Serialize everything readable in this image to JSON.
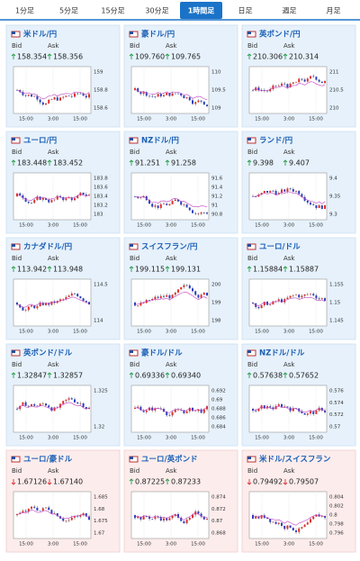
{
  "tabs": [
    "1分足",
    "5分足",
    "15分足",
    "30分足",
    "1時間足",
    "日足",
    "週足",
    "月足"
  ],
  "active_tab": 4,
  "bid_label": "Bid",
  "ask_label": "Ask",
  "x_labels": [
    "15:00",
    "3:00",
    "15:00"
  ],
  "cards": [
    {
      "name": "米ドル/円",
      "bid": "158.354",
      "ask": "158.356",
      "dir": "up",
      "yticks": [
        "159",
        "158.8",
        "158.6"
      ]
    },
    {
      "name": "豪ドル/円",
      "bid": "109.760",
      "ask": "109.765",
      "dir": "up",
      "yticks": [
        "110",
        "109.5",
        "109"
      ]
    },
    {
      "name": "英ポンド/円",
      "bid": "210.306",
      "ask": "210.314",
      "dir": "up",
      "yticks": [
        "211",
        "210.5",
        "210"
      ]
    },
    {
      "name": "ユーロ/円",
      "bid": "183.448",
      "ask": "183.452",
      "dir": "up",
      "yticks": [
        "183.8",
        "183.6",
        "183.4",
        "183.2",
        "183"
      ]
    },
    {
      "name": "NZドル/円",
      "bid": "91.251",
      "ask": "91.258",
      "dir": "up",
      "yticks": [
        "91.6",
        "91.4",
        "91.2",
        "91",
        "90.8"
      ]
    },
    {
      "name": "ランド/円",
      "bid": "9.398",
      "ask": "9.407",
      "dir": "up",
      "yticks": [
        "9.4",
        "9.35",
        "9.3"
      ]
    },
    {
      "name": "カナダドル/円",
      "bid": "113.942",
      "ask": "113.948",
      "dir": "up",
      "yticks": [
        "114.5",
        "114"
      ]
    },
    {
      "name": "スイスフラン/円",
      "bid": "199.115",
      "ask": "199.131",
      "dir": "up",
      "yticks": [
        "200",
        "199",
        "198"
      ]
    },
    {
      "name": "ユーロ/ドル",
      "bid": "1.15884",
      "ask": "1.15887",
      "dir": "up",
      "yticks": [
        "1.155",
        "1.15",
        "1.145"
      ]
    },
    {
      "name": "英ポンド/ドル",
      "bid": "1.32847",
      "ask": "1.32857",
      "dir": "up",
      "yticks": [
        "1.325",
        "1.32"
      ]
    },
    {
      "name": "豪ドル/ドル",
      "bid": "0.69336",
      "ask": "0.69340",
      "dir": "up",
      "yticks": [
        "0.692",
        "0.69",
        "0.688",
        "0.686",
        "0.684"
      ]
    },
    {
      "name": "NZドル/ドル",
      "bid": "0.57638",
      "ask": "0.57652",
      "dir": "up",
      "yticks": [
        "0.576",
        "0.574",
        "0.572",
        "0.57"
      ]
    },
    {
      "name": "ユーロ/豪ドル",
      "bid": "1.67126",
      "ask": "1.67140",
      "dir": "down",
      "yticks": [
        "1.685",
        "1.68",
        "1.675",
        "1.67"
      ]
    },
    {
      "name": "ユーロ/英ポンド",
      "bid": "0.87225",
      "ask": "0.87233",
      "dir": "up",
      "yticks": [
        "0.874",
        "0.872",
        "0.87",
        "0.868"
      ]
    },
    {
      "name": "米ドル/スイスフラン",
      "bid": "0.79492",
      "ask": "0.79507",
      "dir": "down",
      "yticks": [
        "0.804",
        "0.802",
        "0.8",
        "0.798",
        "0.796"
      ]
    }
  ]
}
